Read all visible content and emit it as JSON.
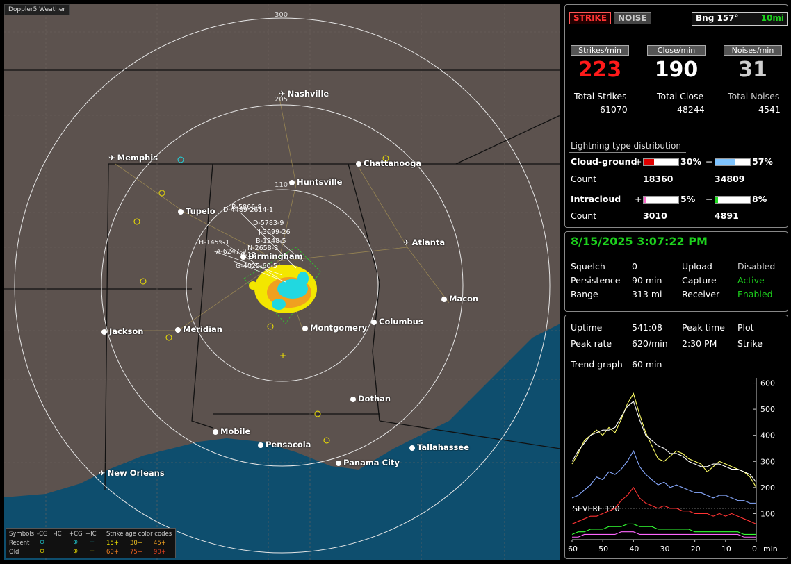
{
  "map": {
    "watermark": "Doppler5 Weather",
    "range_labels": [
      "300",
      "205",
      "110"
    ],
    "cities": [
      {
        "name": "Nashville",
        "kind": "airport"
      },
      {
        "name": "Memphis",
        "kind": "airport"
      },
      {
        "name": "Chattanooga",
        "kind": "city"
      },
      {
        "name": "Huntsville",
        "kind": "city"
      },
      {
        "name": "Tupelo",
        "kind": "city"
      },
      {
        "name": "Atlanta",
        "kind": "airport"
      },
      {
        "name": "Birmingham",
        "kind": "city"
      },
      {
        "name": "Macon",
        "kind": "city"
      },
      {
        "name": "Jackson",
        "kind": "city"
      },
      {
        "name": "Meridian",
        "kind": "city"
      },
      {
        "name": "Montgomery",
        "kind": "city"
      },
      {
        "name": "Columbus",
        "kind": "city"
      },
      {
        "name": "Dothan",
        "kind": "city"
      },
      {
        "name": "Mobile",
        "kind": "city"
      },
      {
        "name": "Pensacola",
        "kind": "city"
      },
      {
        "name": "Tallahassee",
        "kind": "city"
      },
      {
        "name": "Panama City",
        "kind": "city"
      },
      {
        "name": "New Orleans",
        "kind": "airport"
      }
    ],
    "storm_labels": [
      "B-5866-8",
      "D-4489-2614-1",
      "D-5783-9",
      "J-3699-26",
      "B-1248-5",
      "H-1459-1",
      "N-2658-8",
      "A-6247-9",
      "C-12",
      "G-4025-60-5"
    ],
    "legend": {
      "symbols_label": "Symbols",
      "cols": [
        "-CG",
        "-IC",
        "+CG",
        "+IC"
      ],
      "age_label": "Strike age color codes",
      "recent_label": "Recent",
      "old_label": "Old",
      "recent_ages": [
        "15+",
        "30+",
        "45+"
      ],
      "old_ages": [
        "60+",
        "75+",
        "90+"
      ]
    }
  },
  "top": {
    "strike_btn": "STRIKE",
    "noise_btn": "NOISE",
    "bearing": "Bng 157°",
    "distance": "10mi",
    "rate_headers": [
      "Strikes/min",
      "Close/min",
      "Noises/min"
    ],
    "rates": [
      "223",
      "190",
      "31"
    ],
    "total_labels": [
      "Total Strikes",
      "Total Close",
      "Total Noises"
    ],
    "totals": [
      "61070",
      "48244",
      "4541"
    ],
    "dist_title": "Lightning type distribution",
    "cg_label": "Cloud-ground",
    "ic_label": "Intracloud",
    "count_label": "Count",
    "cg_pos_pct": "30%",
    "cg_neg_pct": "57%",
    "cg_pos_count": "18360",
    "cg_neg_count": "34809",
    "ic_pos_pct": "5%",
    "ic_neg_pct": "8%",
    "ic_pos_count": "3010",
    "ic_neg_count": "4891",
    "plus": "+",
    "minus": "−"
  },
  "status": {
    "datetime": "8/15/2025 3:07:22 PM",
    "squelch_label": "Squelch",
    "squelch": "0",
    "persistence_label": "Persistence",
    "persistence": "90 min",
    "range_label": "Range",
    "range": "313 mi",
    "upload_label": "Upload",
    "upload": "Disabled",
    "capture_label": "Capture",
    "capture": "Active",
    "receiver_label": "Receiver",
    "receiver": "Enabled"
  },
  "stats": {
    "uptime_label": "Uptime",
    "uptime": "541:08",
    "peak_time_label": "Peak time",
    "peak_time": "2:30 PM",
    "plot_label": "Plot",
    "peak_rate_label": "Peak rate",
    "peak_rate": "620/min",
    "plot": "Strike",
    "trend_label": "Trend graph",
    "trend": "60 min",
    "severe_label": "SEVERE 120"
  },
  "chart_data": {
    "type": "line",
    "x": [
      60,
      58,
      56,
      54,
      52,
      50,
      48,
      46,
      44,
      42,
      40,
      38,
      36,
      34,
      32,
      30,
      28,
      26,
      24,
      22,
      20,
      18,
      16,
      14,
      12,
      10,
      8,
      6,
      4,
      2,
      0
    ],
    "xticks": [
      "60",
      "50",
      "40",
      "30",
      "20",
      "10",
      "0"
    ],
    "xunit": "min",
    "yticks": [
      "600",
      "500",
      "400",
      "300",
      "200",
      "100"
    ],
    "ylim": [
      0,
      620
    ],
    "severe": 120,
    "series": [
      {
        "color": "#ffff66",
        "values": [
          290,
          330,
          380,
          400,
          420,
          400,
          430,
          410,
          460,
          520,
          560,
          480,
          410,
          360,
          310,
          300,
          320,
          340,
          330,
          310,
          300,
          290,
          260,
          280,
          300,
          290,
          280,
          270,
          260,
          240,
          200
        ]
      },
      {
        "color": "#ffffff",
        "values": [
          300,
          340,
          370,
          400,
          410,
          420,
          420,
          430,
          470,
          510,
          530,
          460,
          400,
          380,
          360,
          350,
          330,
          330,
          320,
          300,
          290,
          280,
          280,
          290,
          290,
          280,
          270,
          270,
          260,
          250,
          220
        ]
      },
      {
        "color": "#88aaff",
        "values": [
          160,
          170,
          190,
          210,
          240,
          230,
          260,
          250,
          270,
          300,
          340,
          280,
          250,
          230,
          210,
          220,
          200,
          210,
          200,
          190,
          180,
          180,
          170,
          160,
          170,
          170,
          160,
          150,
          150,
          140,
          140
        ]
      },
      {
        "color": "#ff3333",
        "values": [
          60,
          70,
          80,
          90,
          90,
          100,
          110,
          120,
          150,
          170,
          200,
          160,
          140,
          130,
          120,
          130,
          120,
          120,
          110,
          110,
          100,
          100,
          100,
          90,
          100,
          90,
          100,
          90,
          80,
          70,
          60
        ]
      },
      {
        "color": "#33ff33",
        "values": [
          20,
          30,
          30,
          40,
          40,
          40,
          50,
          50,
          50,
          60,
          60,
          50,
          50,
          50,
          40,
          40,
          40,
          40,
          40,
          40,
          30,
          30,
          30,
          30,
          30,
          30,
          30,
          30,
          20,
          20,
          20
        ]
      },
      {
        "color": "#ff66ff",
        "values": [
          10,
          10,
          20,
          20,
          20,
          20,
          20,
          20,
          30,
          30,
          30,
          20,
          20,
          20,
          20,
          20,
          20,
          20,
          20,
          20,
          20,
          20,
          20,
          20,
          20,
          20,
          20,
          20,
          10,
          10,
          10
        ]
      }
    ]
  }
}
